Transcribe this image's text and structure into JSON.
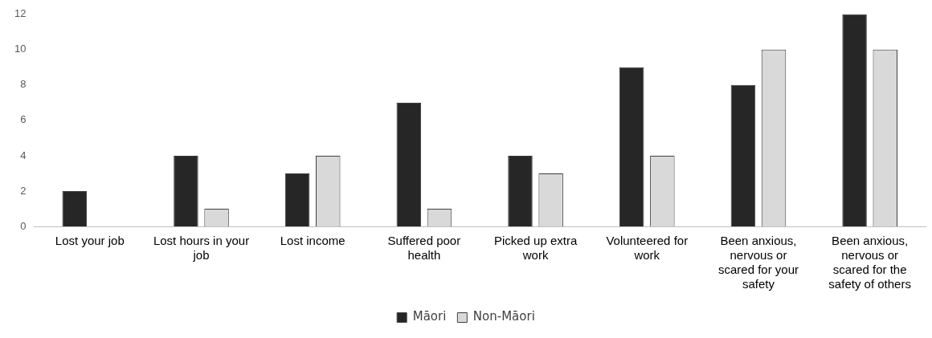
{
  "chart_data": {
    "type": "bar",
    "categories": [
      "Lost your job",
      "Lost hours in your job",
      "Lost income",
      "Suffered poor health",
      "Picked up extra work",
      "Volunteered for work",
      "Been anxious, nervous or scared for your safety",
      "Been anxious, nervous or scared for the safety of others"
    ],
    "series": [
      {
        "name": "Māori",
        "color": "#262626",
        "values": [
          2,
          4,
          3,
          7,
          4,
          9,
          8,
          12
        ]
      },
      {
        "name": "Non-Māori",
        "color": "#d9d9d9",
        "values": [
          0,
          1,
          4,
          1,
          3,
          4,
          10,
          10
        ]
      }
    ],
    "ylim": [
      0,
      12
    ],
    "yticks": [
      0,
      2,
      4,
      6,
      8,
      10,
      12
    ],
    "grid": false,
    "legend": "bottom"
  }
}
